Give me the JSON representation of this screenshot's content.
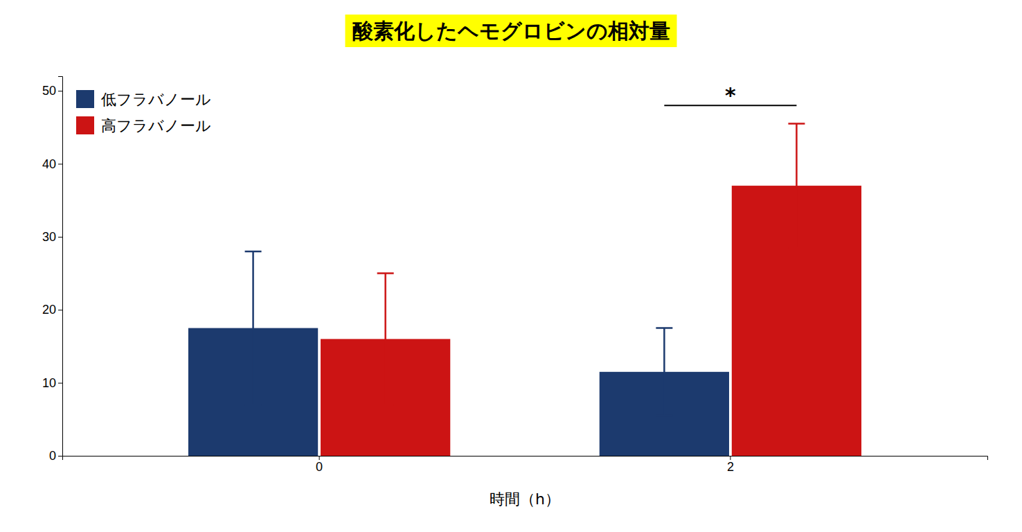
{
  "chart_data": {
    "type": "bar",
    "title": "酸素化したヘモグロビンの相対量",
    "xlabel": "時間（h）",
    "categories": [
      "0",
      "2"
    ],
    "series": [
      {
        "name": "低フラバノール",
        "color": "#1c3a6e",
        "values": [
          17.5,
          11.5
        ],
        "errors": [
          10.5,
          6.0
        ]
      },
      {
        "name": "高フラバノール",
        "color": "#cc1414",
        "values": [
          16.0,
          37.0
        ],
        "errors": [
          9.0,
          8.5
        ]
      }
    ],
    "ylim": [
      0,
      52
    ],
    "yticks": [
      0,
      10,
      20,
      30,
      40,
      50
    ],
    "grid": false,
    "legend": "upper left",
    "annotations": [
      {
        "text": "*",
        "category": "2",
        "y": 48
      }
    ]
  }
}
